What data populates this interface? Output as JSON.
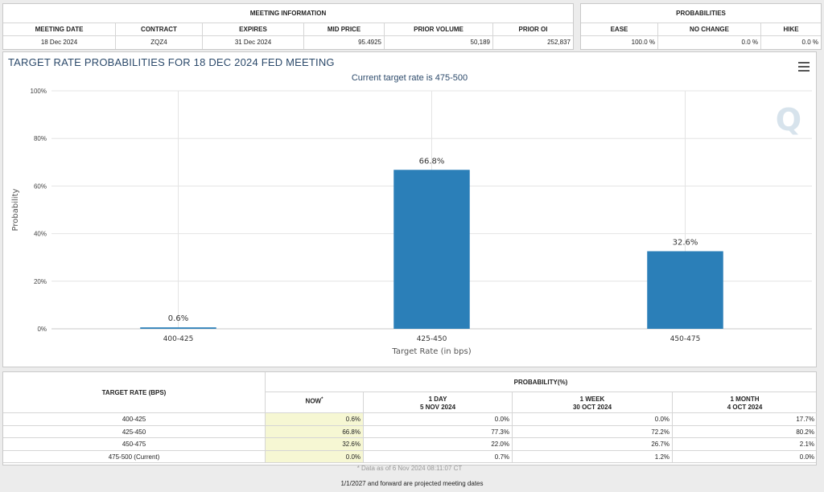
{
  "meeting_info": {
    "title": "MEETING INFORMATION",
    "headers": [
      "MEETING DATE",
      "CONTRACT",
      "EXPIRES",
      "MID PRICE",
      "PRIOR VOLUME",
      "PRIOR OI"
    ],
    "values": [
      "18 Dec 2024",
      "ZQZ4",
      "31 Dec 2024",
      "95.4925",
      "50,189",
      "252,837"
    ]
  },
  "probabilities": {
    "title": "PROBABILITIES",
    "headers": [
      "EASE",
      "NO CHANGE",
      "HIKE"
    ],
    "values": [
      "100.0 %",
      "0.0 %",
      "0.0 %"
    ]
  },
  "chart_data": {
    "type": "bar",
    "title": "TARGET RATE PROBABILITIES FOR 18 DEC 2024 FED MEETING",
    "subtitle": "Current target rate is 475-500",
    "xlabel": "Target Rate (in bps)",
    "ylabel": "Probability",
    "categories": [
      "400-425",
      "425-450",
      "450-475"
    ],
    "values": [
      0.6,
      66.8,
      32.6
    ],
    "data_labels": [
      "0.6%",
      "66.8%",
      "32.6%"
    ],
    "ylim": [
      0,
      100
    ],
    "yticks": [
      "0%",
      "20%",
      "40%",
      "60%",
      "80%",
      "100%"
    ],
    "grid": true,
    "bar_color": "#2b7fb8"
  },
  "table": {
    "row_header": "TARGET RATE (BPS)",
    "group_header": "PROBABILITY(%)",
    "columns": [
      {
        "label": "NOW",
        "sub": ""
      },
      {
        "label": "1 DAY",
        "sub": "5 NOV 2024"
      },
      {
        "label": "1 WEEK",
        "sub": "30 OCT 2024"
      },
      {
        "label": "1 MONTH",
        "sub": "4 OCT 2024"
      }
    ],
    "now_marker": "*",
    "rows": [
      {
        "rate": "400-425",
        "values": [
          "0.6%",
          "0.0%",
          "0.0%",
          "17.7%"
        ]
      },
      {
        "rate": "425-450",
        "values": [
          "66.8%",
          "77.3%",
          "72.2%",
          "80.2%"
        ]
      },
      {
        "rate": "450-475",
        "values": [
          "32.6%",
          "22.0%",
          "26.7%",
          "2.1%"
        ]
      },
      {
        "rate": "475-500 (Current)",
        "values": [
          "0.0%",
          "0.7%",
          "1.2%",
          "0.0%"
        ]
      }
    ],
    "note": "* Data as of 6 Nov 2024 08:11:07 CT"
  },
  "footer": "1/1/2027 and forward are projected meeting dates",
  "icons": {
    "menu": "hamburger-menu-icon",
    "logo": "q-logo-icon"
  }
}
